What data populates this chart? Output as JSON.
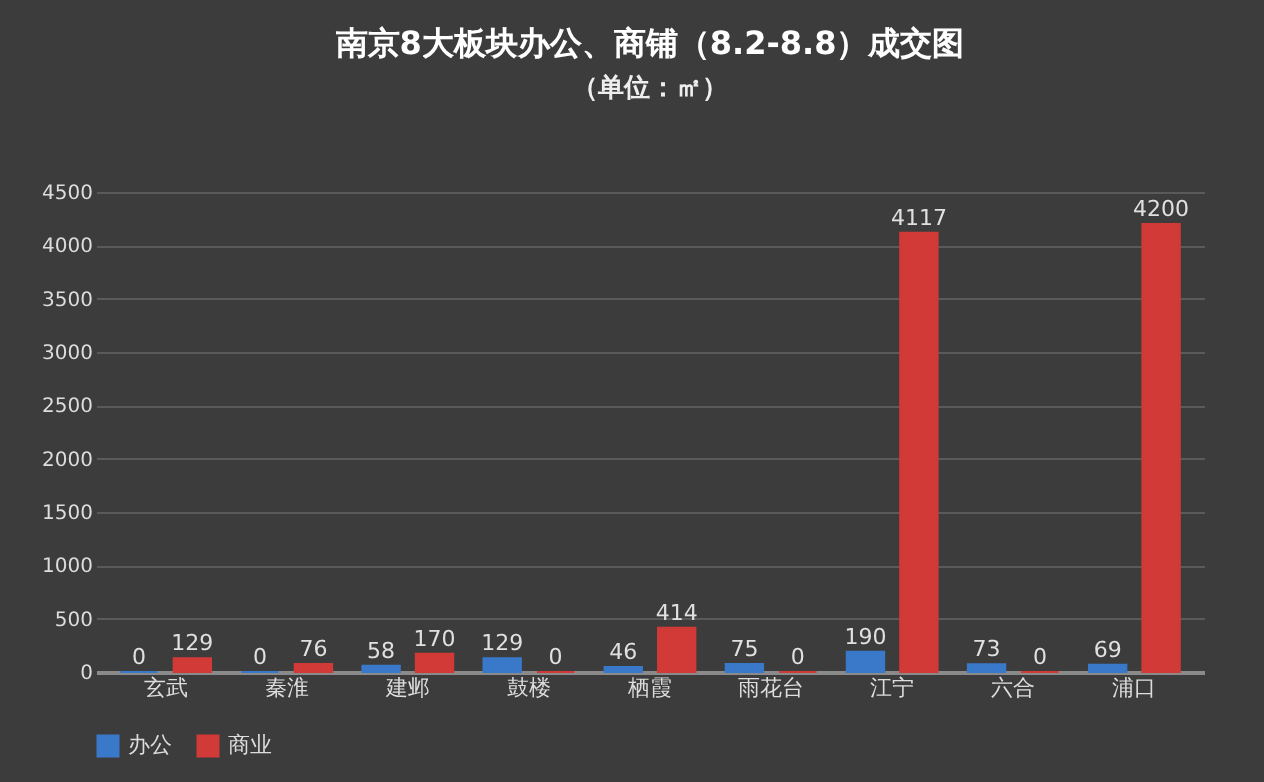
{
  "chart_data": {
    "type": "bar",
    "title": "南京8大板块办公、商铺（8.2-8.8）成交图",
    "subtitle": "（单位：㎡）",
    "categories": [
      "玄武",
      "秦淮",
      "建邺",
      "鼓楼",
      "栖霞",
      "雨花台",
      "江宁",
      "六合",
      "浦口"
    ],
    "series": [
      {
        "name": "办公",
        "color": "#3a78c9",
        "values": [
          0,
          0,
          58,
          129,
          46,
          75,
          190,
          73,
          69
        ]
      },
      {
        "name": "商业",
        "color": "#d13a36",
        "values": [
          129,
          76,
          170,
          0,
          414,
          0,
          4117,
          0,
          4200
        ]
      }
    ],
    "ylim": [
      0,
      4500
    ],
    "yticks": [
      0,
      500,
      1000,
      1500,
      2000,
      2500,
      3000,
      3500,
      4000,
      4500
    ],
    "grid": "y",
    "legend": "bottom",
    "data_labels": true
  }
}
